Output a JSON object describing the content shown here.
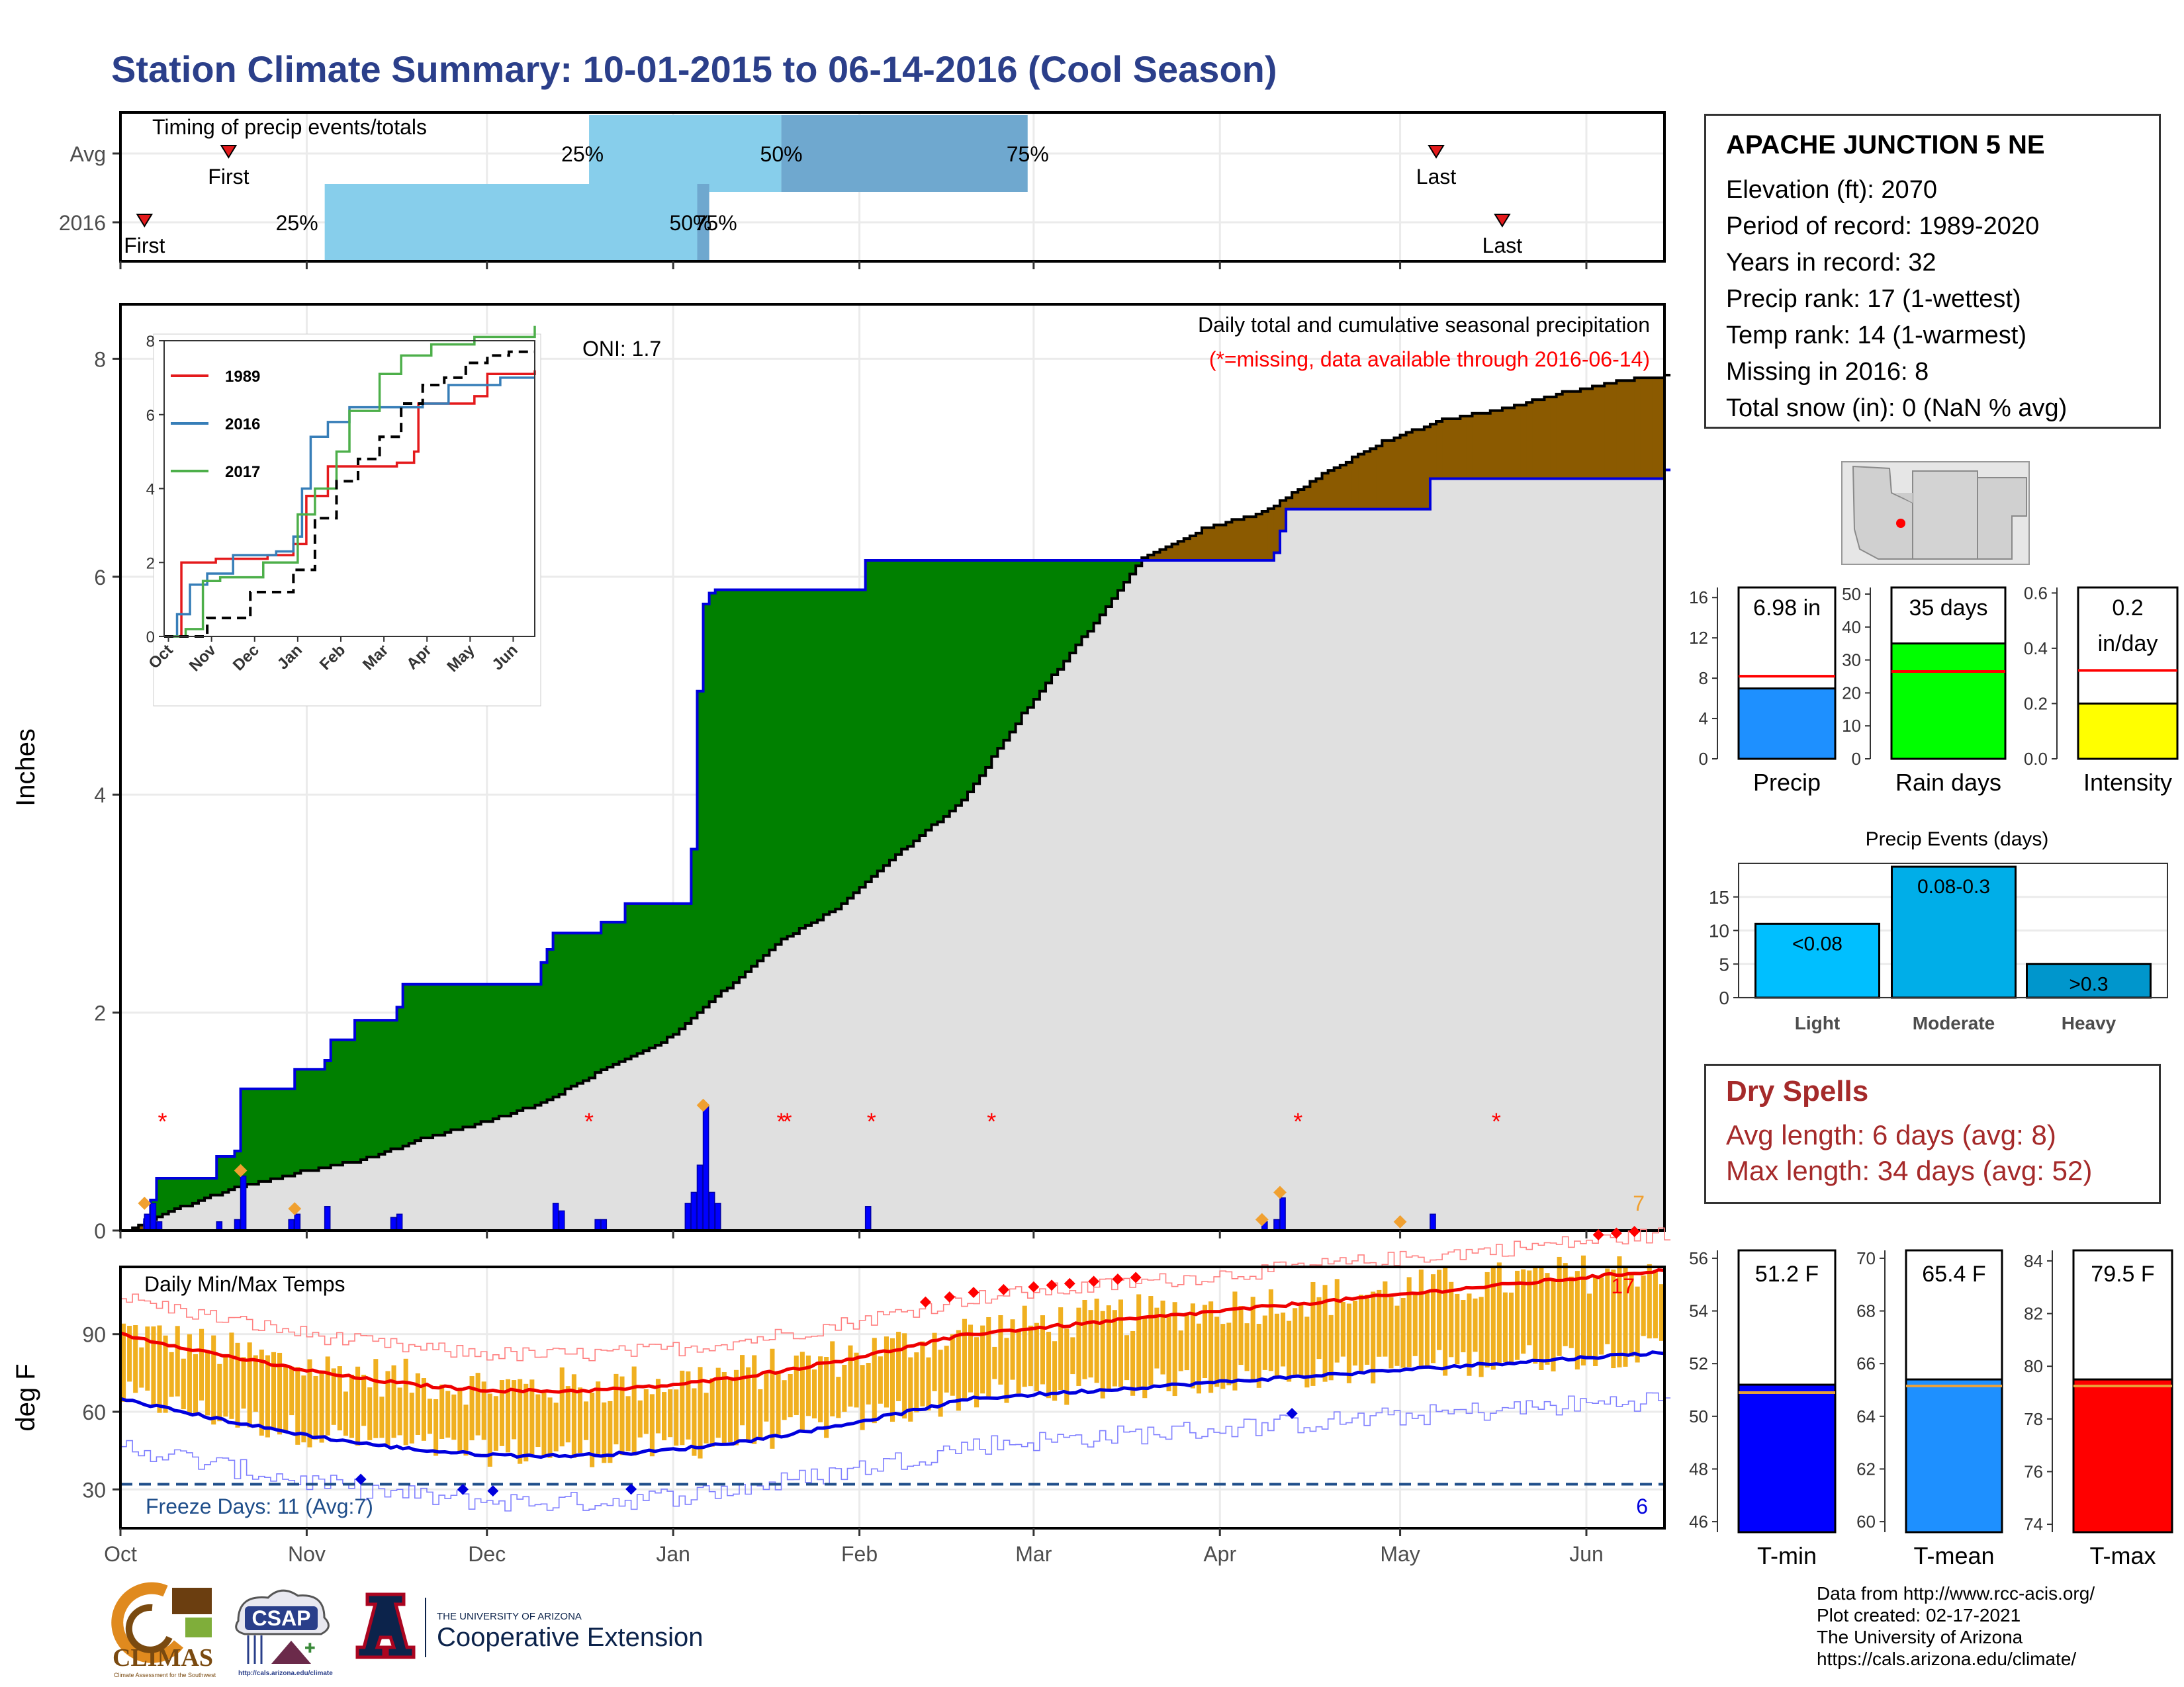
{
  "title": "Station Climate Summary: 10-01-2015 to 06-14-2016 (Cool Season)",
  "colors": {
    "title": "#2b3f8a",
    "light_blue": "#87ceeb",
    "mid_blue": "#6fa8cf",
    "green": "#008000",
    "brown": "#8b5a00",
    "grey_fill": "#e0e0e0",
    "bar_blue": "#0000ff",
    "orange": "#f0a030",
    "red": "#ff0000",
    "tmin_bar": "#0000ff",
    "tmean_bar": "#1e90ff",
    "tmax_bar": "#ff0000"
  },
  "timing": {
    "title": "Timing of precip events/totals",
    "x_domain_days": [
      0,
      257
    ],
    "rows": [
      {
        "label": "Avg",
        "first": 18,
        "p25": 78,
        "p50": 110,
        "p75": 151,
        "last": 219,
        "labels": {
          "first": "First",
          "p25": "25%",
          "p50": "50%",
          "p75": "75%",
          "last": "Last"
        }
      },
      {
        "label": "2016",
        "first": 4,
        "p25": 34,
        "p50": 96,
        "p75": 98,
        "last": 230,
        "labels": {
          "first": "First",
          "p25": "25%",
          "p50": "50%",
          "p75": "75%",
          "last": "Last"
        }
      }
    ]
  },
  "chart_data": [
    {
      "type": "area",
      "name": "cumulative precip",
      "ylabel": "Inches",
      "annotations": [
        "Daily total and cumulative seasonal precipitation",
        "(*=missing, data available through 2016-06-14)",
        "ONI: 1.7",
        "7"
      ],
      "ylim": [
        0,
        8.5
      ],
      "yticks": [
        0,
        2,
        4,
        6,
        8
      ],
      "x_unit": "days since 2015-10-01",
      "xlim": [
        0,
        257
      ],
      "xticks": [
        {
          "d": 0,
          "label": "Oct"
        },
        {
          "d": 31,
          "label": "Nov"
        },
        {
          "d": 61,
          "label": "Dec"
        },
        {
          "d": 92,
          "label": "Jan"
        },
        {
          "d": 123,
          "label": "Feb"
        },
        {
          "d": 152,
          "label": "Mar"
        },
        {
          "d": 183,
          "label": "Apr"
        },
        {
          "d": 213,
          "label": "May"
        },
        {
          "d": 244,
          "label": "Jun"
        }
      ],
      "cum_2016": [
        [
          0,
          0
        ],
        [
          4,
          0.1
        ],
        [
          5,
          0.28
        ],
        [
          6,
          0.48
        ],
        [
          15,
          0.48
        ],
        [
          16,
          0.68
        ],
        [
          19,
          0.73
        ],
        [
          19.5,
          0.8
        ],
        [
          20,
          1.3
        ],
        [
          28,
          1.3
        ],
        [
          29,
          1.48
        ],
        [
          33,
          1.48
        ],
        [
          34,
          1.56
        ],
        [
          35,
          1.75
        ],
        [
          38,
          1.75
        ],
        [
          39,
          1.93
        ],
        [
          45,
          1.93
        ],
        [
          46,
          2.05
        ],
        [
          46.5,
          2.18
        ],
        [
          47,
          2.26
        ],
        [
          57,
          2.26
        ],
        [
          59,
          2.26
        ],
        [
          69,
          2.26
        ],
        [
          70,
          2.46
        ],
        [
          71,
          2.58
        ],
        [
          72,
          2.73
        ],
        [
          79,
          2.73
        ],
        [
          80,
          2.83
        ],
        [
          83,
          2.83
        ],
        [
          83.5,
          2.9
        ],
        [
          84,
          3.0
        ],
        [
          94,
          3.0
        ],
        [
          94.5,
          3.15
        ],
        [
          95,
          3.5
        ],
        [
          95.5,
          4.1
        ],
        [
          96,
          4.95
        ],
        [
          96.5,
          5.55
        ],
        [
          97,
          5.75
        ],
        [
          98,
          5.85
        ],
        [
          99,
          5.88
        ],
        [
          123,
          5.88
        ],
        [
          124,
          6.15
        ],
        [
          175,
          6.15
        ],
        [
          190,
          6.15
        ],
        [
          192,
          6.22
        ],
        [
          193,
          6.42
        ],
        [
          194,
          6.62
        ],
        [
          217,
          6.62
        ],
        [
          218,
          6.9
        ],
        [
          257,
          6.98
        ]
      ],
      "cum_avg": [
        [
          0,
          0
        ],
        [
          10,
          0.23
        ],
        [
          20,
          0.42
        ],
        [
          30,
          0.55
        ],
        [
          40,
          0.66
        ],
        [
          50,
          0.85
        ],
        [
          60,
          1.0
        ],
        [
          70,
          1.18
        ],
        [
          80,
          1.48
        ],
        [
          90,
          1.73
        ],
        [
          100,
          2.2
        ],
        [
          110,
          2.68
        ],
        [
          120,
          3.0
        ],
        [
          130,
          3.5
        ],
        [
          140,
          3.95
        ],
        [
          150,
          4.75
        ],
        [
          160,
          5.45
        ],
        [
          170,
          6.18
        ],
        [
          180,
          6.45
        ],
        [
          190,
          6.6
        ],
        [
          200,
          6.95
        ],
        [
          210,
          7.25
        ],
        [
          220,
          7.45
        ],
        [
          230,
          7.55
        ],
        [
          240,
          7.7
        ],
        [
          250,
          7.82
        ],
        [
          257,
          7.85
        ]
      ],
      "daily_bars": [
        [
          4,
          0.15
        ],
        [
          5,
          0.25
        ],
        [
          6,
          0.08
        ],
        [
          16,
          0.08
        ],
        [
          19,
          0.1
        ],
        [
          20,
          0.5
        ],
        [
          28,
          0.1
        ],
        [
          29,
          0.15
        ],
        [
          34,
          0.22
        ],
        [
          45,
          0.12
        ],
        [
          46,
          0.15
        ],
        [
          72,
          0.25
        ],
        [
          73,
          0.18
        ],
        [
          79,
          0.1
        ],
        [
          80,
          0.1
        ],
        [
          94,
          0.25
        ],
        [
          95,
          0.35
        ],
        [
          96,
          0.6
        ],
        [
          97,
          1.15
        ],
        [
          98,
          0.35
        ],
        [
          99,
          0.25
        ],
        [
          124,
          0.22
        ],
        [
          190,
          0.08
        ],
        [
          192,
          0.1
        ],
        [
          193,
          0.3
        ],
        [
          218,
          0.15
        ]
      ],
      "orange_markers": [
        [
          4,
          0.25
        ],
        [
          20,
          0.55
        ],
        [
          29,
          0.2
        ],
        [
          97,
          1.15
        ],
        [
          190,
          0.1
        ],
        [
          193,
          0.35
        ],
        [
          213,
          0.08
        ]
      ],
      "missing_markers": [
        7,
        78,
        110,
        111,
        125,
        145,
        196,
        229
      ]
    },
    {
      "type": "line",
      "name": "inset cumulative",
      "ylim": [
        0,
        8
      ],
      "yticks": [
        0,
        2,
        4,
        6,
        8
      ],
      "xticks": [
        "Oct",
        "Nov",
        "Dec",
        "Jan",
        "Feb",
        "Mar",
        "Apr",
        "May",
        "Jun"
      ],
      "legend": [
        "1989",
        "2016",
        "2017"
      ],
      "series": [
        {
          "name": "1989",
          "color": "#e41a1c",
          "points": [
            [
              0,
              0
            ],
            [
              0.3,
              0
            ],
            [
              0.4,
              2.0
            ],
            [
              1.2,
              2.1
            ],
            [
              2.2,
              2.1
            ],
            [
              2.4,
              2.2
            ],
            [
              3.0,
              2.5
            ],
            [
              3.3,
              3.8
            ],
            [
              3.8,
              4.6
            ],
            [
              5.4,
              4.7
            ],
            [
              5.8,
              5.0
            ],
            [
              5.9,
              6.3
            ],
            [
              7.2,
              6.5
            ],
            [
              7.5,
              7.1
            ],
            [
              8.6,
              7.2
            ]
          ]
        },
        {
          "name": "2016",
          "color": "#377eb8",
          "points": [
            [
              0,
              0
            ],
            [
              0.3,
              0.6
            ],
            [
              0.6,
              1.4
            ],
            [
              1.0,
              1.7
            ],
            [
              1.6,
              2.2
            ],
            [
              2.6,
              2.3
            ],
            [
              3.0,
              2.7
            ],
            [
              3.2,
              4.0
            ],
            [
              3.4,
              5.4
            ],
            [
              3.8,
              5.8
            ],
            [
              4.3,
              6.2
            ],
            [
              6.0,
              6.3
            ],
            [
              6.6,
              6.8
            ],
            [
              7.8,
              7.0
            ],
            [
              8.6,
              7.0
            ]
          ]
        },
        {
          "name": "2017",
          "color": "#4daf4a",
          "points": [
            [
              0,
              0
            ],
            [
              0.5,
              0.2
            ],
            [
              0.9,
              1.5
            ],
            [
              1.3,
              1.6
            ],
            [
              2.3,
              2.0
            ],
            [
              2.9,
              2.0
            ],
            [
              3.1,
              3.3
            ],
            [
              3.5,
              4.0
            ],
            [
              4.0,
              5.0
            ],
            [
              4.3,
              6.1
            ],
            [
              5.0,
              7.1
            ],
            [
              5.5,
              7.6
            ],
            [
              6.2,
              7.9
            ],
            [
              7.2,
              8.1
            ],
            [
              8.6,
              8.4
            ]
          ]
        },
        {
          "name": "",
          "color": "#000000",
          "dashed": true,
          "points": [
            [
              0,
              0
            ],
            [
              1,
              0.5
            ],
            [
              2,
              1.2
            ],
            [
              3,
              1.8
            ],
            [
              3.5,
              3.2
            ],
            [
              4,
              4.2
            ],
            [
              4.5,
              4.8
            ],
            [
              5,
              5.4
            ],
            [
              5.5,
              6.3
            ],
            [
              6,
              6.8
            ],
            [
              6.5,
              7.0
            ],
            [
              7,
              7.4
            ],
            [
              7.5,
              7.6
            ],
            [
              8,
              7.7
            ],
            [
              8.6,
              7.7
            ]
          ]
        }
      ]
    },
    {
      "type": "bar",
      "name": "precip gauges",
      "panels": [
        {
          "label": "Precip",
          "value_label": "6.98 in",
          "value": 6.98,
          "avg": 8.2,
          "ylim": [
            0,
            17
          ],
          "yticks": [
            0,
            4,
            8,
            12,
            16
          ],
          "color": "#1e90ff"
        },
        {
          "label": "Rain days",
          "value_label": "35 days",
          "value": 35,
          "avg": 26.5,
          "ylim": [
            0,
            52
          ],
          "yticks": [
            0,
            10,
            20,
            30,
            40,
            50
          ],
          "color": "#00ff00"
        },
        {
          "label": "Intensity",
          "value_label_lines": [
            "0.2",
            "in/day"
          ],
          "value": 0.2,
          "avg": 0.32,
          "ylim": [
            0,
            0.62
          ],
          "yticks": [
            "0.0",
            "0.2",
            "0.4",
            "0.6"
          ],
          "color": "#ffff00"
        }
      ]
    },
    {
      "type": "bar",
      "name": "precip events",
      "title": "Precip Events (days)",
      "categories": [
        "Light",
        "Moderate",
        "Heavy"
      ],
      "bar_labels": [
        "<0.08",
        "0.08-0.3",
        ">0.3"
      ],
      "values": [
        11,
        19.5,
        5
      ],
      "colors": [
        "#00bfff",
        "#00aee8",
        "#0096cc"
      ],
      "ylim": [
        0,
        20
      ],
      "yticks": [
        0,
        5,
        10,
        15
      ]
    },
    {
      "type": "line",
      "name": "daily temps",
      "title": "Daily Min/Max Temps",
      "ylabel": "deg F",
      "ylim": [
        15,
        116
      ],
      "yticks": [
        30,
        60,
        90
      ],
      "freeze_line": 32,
      "freeze_label": "Freeze Days: 11 (Avg:7)",
      "corner_labels": {
        "hot": "17",
        "freeze": "6"
      }
    },
    {
      "type": "bar",
      "name": "temp gauges",
      "panels": [
        {
          "label": "T-min",
          "value_label": "51.2 F",
          "value": 51.2,
          "avg": 50.9,
          "ylim": [
            45.6,
            56.3
          ],
          "yticks": [
            46,
            48,
            50,
            52,
            54,
            56
          ],
          "color": "#0000ff"
        },
        {
          "label": "T-mean",
          "value_label": "65.4 F",
          "value": 65.4,
          "avg": 65.15,
          "ylim": [
            59.6,
            70.3
          ],
          "yticks": [
            60,
            62,
            64,
            66,
            68,
            70
          ],
          "color": "#1e90ff"
        },
        {
          "label": "T-max",
          "value_label": "79.5 F",
          "value": 79.5,
          "avg": 79.25,
          "ylim": [
            73.7,
            84.4
          ],
          "yticks": [
            74,
            76,
            78,
            80,
            82,
            84
          ],
          "color": "#ff0000"
        }
      ]
    }
  ],
  "station": {
    "name": "APACHE JUNCTION 5 NE",
    "elevation": "Elevation (ft): 2070",
    "period": "Period of record: 1989-2020",
    "years": "Years in record: 32",
    "precip_rank": "Precip rank: 17 (1-wettest)",
    "temp_rank": "Temp rank: 14 (1-warmest)",
    "missing": "Missing in 2016: 8",
    "snow": "Total snow (in): 0 (NaN % avg)"
  },
  "dry_spells": {
    "title": "Dry Spells",
    "avg": "Avg length: 6 days (avg: 8)",
    "max": "Max length: 34 days (avg: 52)"
  },
  "footer": {
    "line1": "Data from http://www.rcc-acis.org/",
    "line2": "Plot created: 02-17-2021",
    "line3": "The University of Arizona",
    "line4": "https://cals.arizona.edu/climate/"
  },
  "logos": {
    "climas": "CLIMAS",
    "climas_sub": "Climate Assessment for the Southwest",
    "csap": "CSAP",
    "csap_url": "http://cals.arizona.edu/climate",
    "ua_small": "THE UNIVERSITY OF ARIZONA",
    "ua_big": "Cooperative Extension"
  }
}
